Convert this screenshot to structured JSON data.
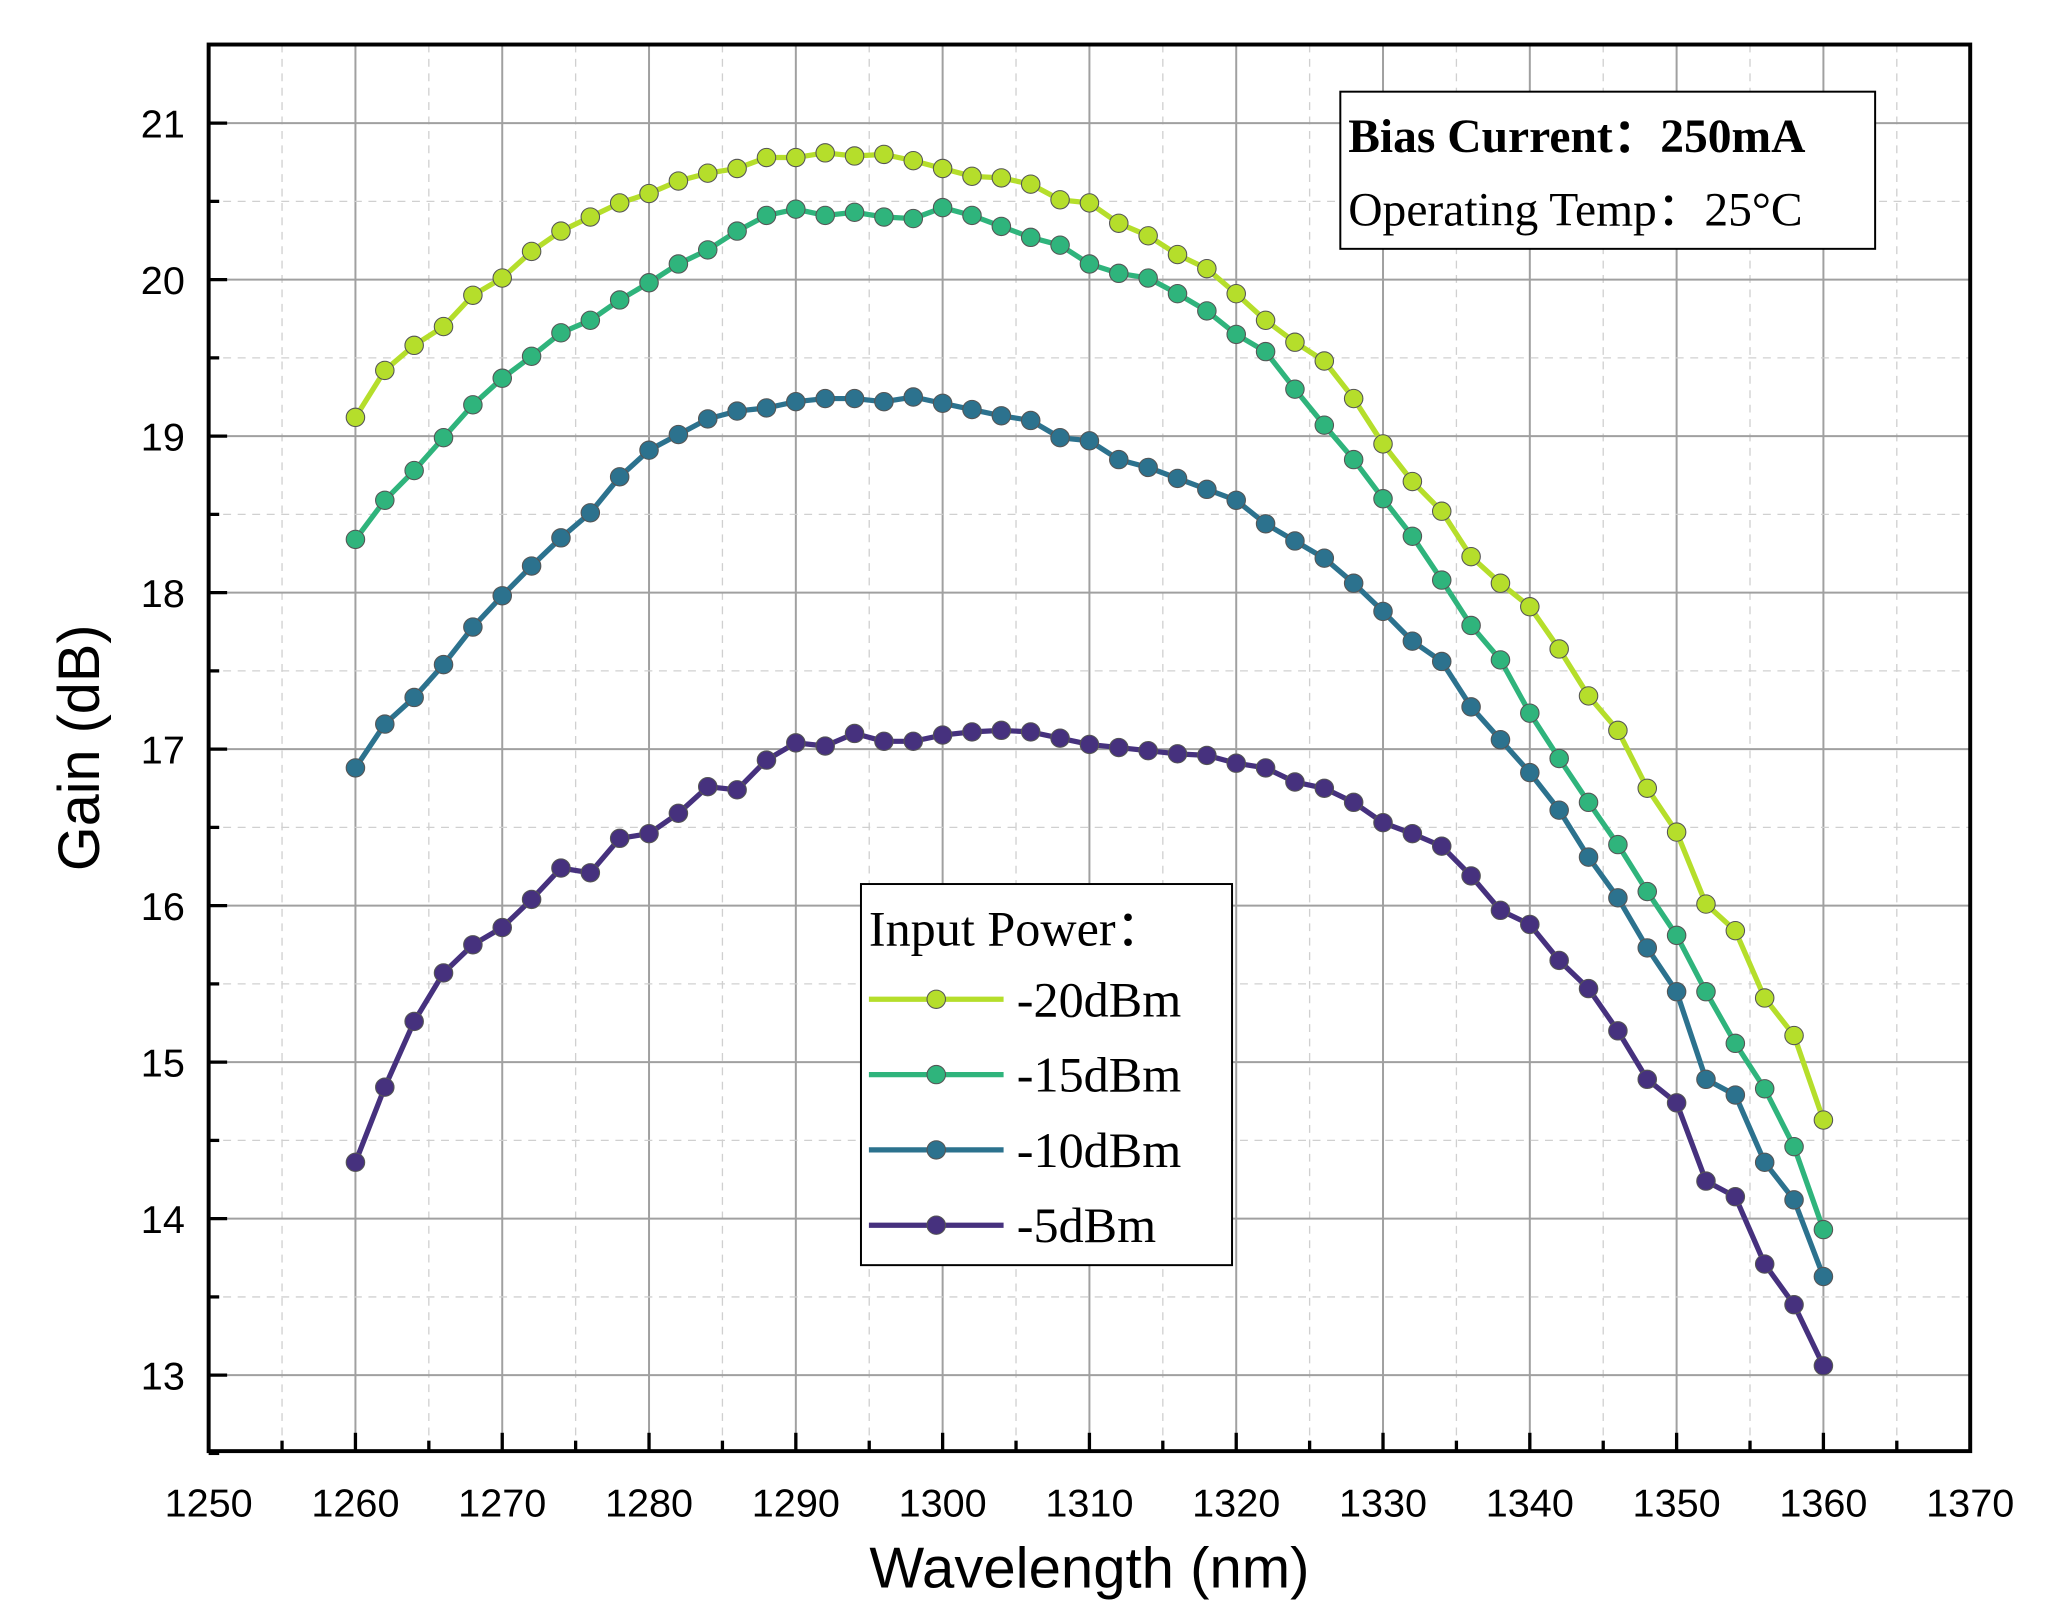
{
  "chart_data": {
    "type": "line",
    "xlabel": "Wavelength (nm)",
    "ylabel": "Gain (dB)",
    "xlim": [
      1250,
      1370
    ],
    "ylim": [
      12.5,
      21.6
    ],
    "xticks": [
      "1250",
      "1260",
      "1270",
      "1280",
      "1290",
      "1300",
      "1310",
      "1320",
      "1330",
      "1340",
      "1350",
      "1360",
      "1370"
    ],
    "yticks": [
      "13",
      "14",
      "15",
      "16",
      "17",
      "18",
      "19",
      "20",
      "21"
    ],
    "grid": true,
    "x_start": 1260,
    "x_step": 2,
    "annotation": {
      "line1": "Bias Current：250mA",
      "line2": "Operating Temp：25°C"
    },
    "legend": {
      "title": "Input Power：",
      "placement": "center-bottom"
    },
    "series": [
      {
        "name": "-20dBm",
        "color": "#b5de2b",
        "values": [
          19.12,
          19.42,
          19.58,
          19.7,
          19.9,
          20.01,
          20.18,
          20.31,
          20.4,
          20.49,
          20.55,
          20.63,
          20.68,
          20.71,
          20.78,
          20.78,
          20.81,
          20.79,
          20.8,
          20.76,
          20.71,
          20.66,
          20.65,
          20.61,
          20.51,
          20.49,
          20.36,
          20.28,
          20.16,
          20.07,
          19.91,
          19.74,
          19.6,
          19.48,
          19.24,
          18.95,
          18.71,
          18.52,
          18.23,
          18.06,
          17.91,
          17.64,
          17.34,
          17.12,
          16.75,
          16.47,
          16.01,
          15.84,
          15.41,
          15.17,
          14.63
        ]
      },
      {
        "name": "-15dBm",
        "color": "#2fb47c",
        "values": [
          18.34,
          18.59,
          18.78,
          18.99,
          19.2,
          19.37,
          19.51,
          19.66,
          19.74,
          19.87,
          19.98,
          20.1,
          20.19,
          20.31,
          20.41,
          20.45,
          20.41,
          20.43,
          20.4,
          20.39,
          20.46,
          20.41,
          20.34,
          20.27,
          20.22,
          20.1,
          20.04,
          20.01,
          19.91,
          19.8,
          19.65,
          19.54,
          19.3,
          19.07,
          18.85,
          18.6,
          18.36,
          18.08,
          17.79,
          17.57,
          17.23,
          16.94,
          16.66,
          16.39,
          16.09,
          15.81,
          15.45,
          15.12,
          14.83,
          14.46,
          13.93
        ]
      },
      {
        "name": "-10dBm",
        "color": "#2c728e",
        "values": [
          16.88,
          17.16,
          17.33,
          17.54,
          17.78,
          17.98,
          18.17,
          18.35,
          18.51,
          18.74,
          18.91,
          19.01,
          19.11,
          19.16,
          19.18,
          19.22,
          19.24,
          19.24,
          19.22,
          19.25,
          19.21,
          19.17,
          19.13,
          19.1,
          18.99,
          18.97,
          18.85,
          18.8,
          18.73,
          18.66,
          18.59,
          18.44,
          18.33,
          18.22,
          18.06,
          17.88,
          17.69,
          17.56,
          17.27,
          17.06,
          16.85,
          16.61,
          16.31,
          16.05,
          15.73,
          15.45,
          14.89,
          14.79,
          14.36,
          14.12,
          13.63
        ]
      },
      {
        "name": "-5dBm",
        "color": "#46317e",
        "values": [
          14.36,
          14.84,
          15.26,
          15.57,
          15.75,
          15.86,
          16.04,
          16.24,
          16.21,
          16.43,
          16.46,
          16.59,
          16.76,
          16.74,
          16.93,
          17.04,
          17.02,
          17.1,
          17.05,
          17.05,
          17.09,
          17.11,
          17.12,
          17.11,
          17.07,
          17.03,
          17.01,
          16.99,
          16.97,
          16.96,
          16.91,
          16.88,
          16.79,
          16.75,
          16.66,
          16.53,
          16.46,
          16.38,
          16.19,
          15.97,
          15.88,
          15.65,
          15.47,
          15.2,
          14.89,
          14.74,
          14.24,
          14.14,
          13.71,
          13.45,
          13.06
        ]
      }
    ]
  }
}
